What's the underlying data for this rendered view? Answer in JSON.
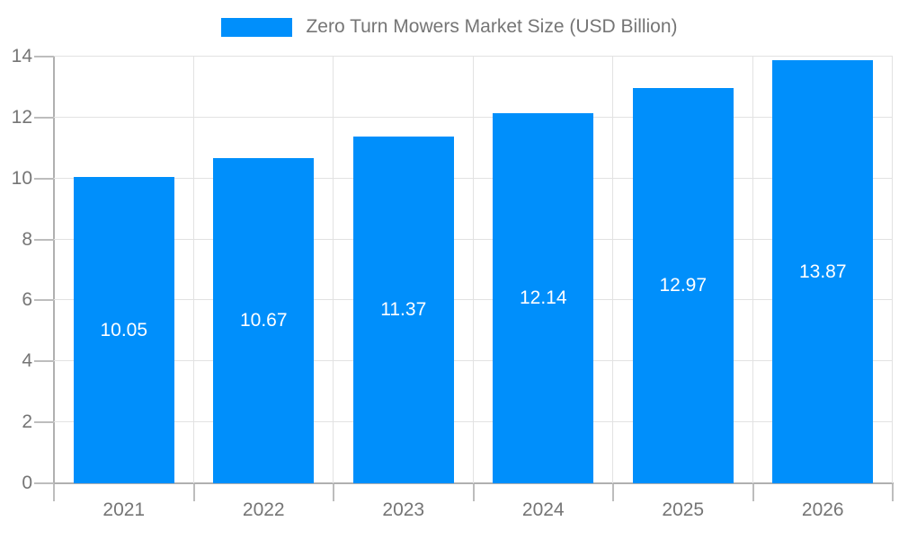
{
  "legend": {
    "label": "Zero Turn Mowers Market Size (USD Billion)",
    "swatch_color": "#008FFB"
  },
  "chart_data": {
    "type": "bar",
    "title": "Zero Turn Mowers Market Size (USD Billion)",
    "categories": [
      "2021",
      "2022",
      "2023",
      "2024",
      "2025",
      "2026"
    ],
    "values": [
      10.05,
      10.67,
      11.37,
      12.14,
      12.97,
      13.87
    ],
    "value_labels": [
      "10.05",
      "10.67",
      "11.37",
      "12.14",
      "12.97",
      "13.87"
    ],
    "y_tick_labels": [
      "0",
      "2",
      "4",
      "6",
      "8",
      "10",
      "12",
      "14"
    ],
    "xlabel": "",
    "ylabel": "",
    "ylim": [
      0,
      14
    ],
    "ytick_step": 2,
    "grid": true,
    "legend_position": "top",
    "colors": {
      "bar": "#008FFB",
      "value_label": "#ffffff",
      "axis_text": "#757575",
      "gridline": "#e2e2e2",
      "axis_line": "#b0b0b0",
      "background": "#ffffff"
    }
  }
}
